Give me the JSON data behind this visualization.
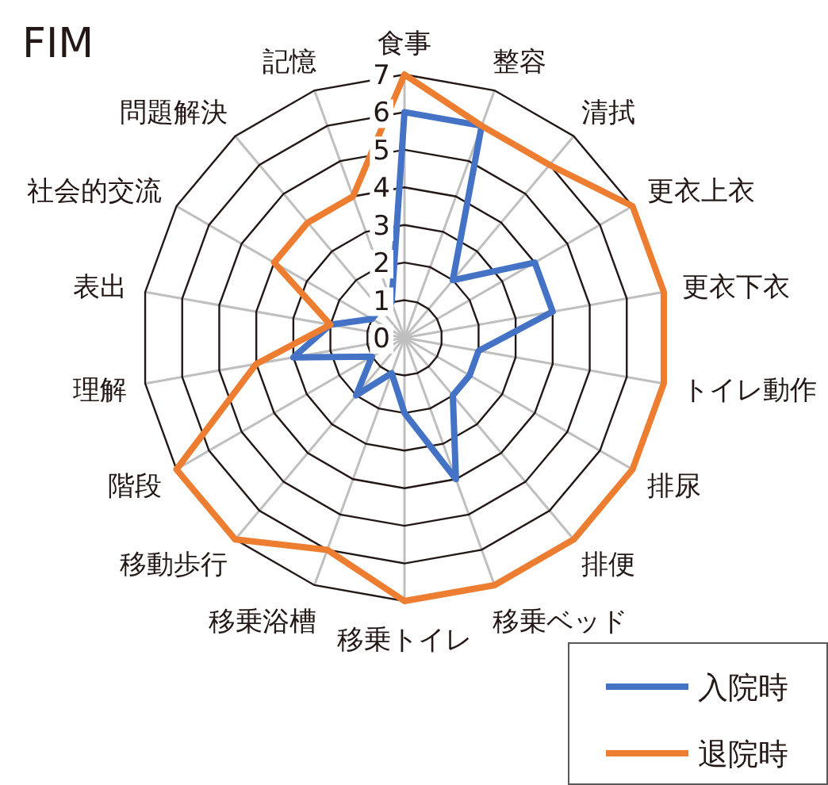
{
  "chart_data": {
    "type": "radar",
    "title": "FIM",
    "categories": [
      "食事",
      "整容",
      "清拭",
      "更衣上衣",
      "更衣下衣",
      "トイレ動作",
      "排尿",
      "排便",
      "移乗ベッド",
      "移乗トイレ",
      "移乗浴槽",
      "移動歩行",
      "階段",
      "理解",
      "表出",
      "社会的交流",
      "問題解決",
      "記憶"
    ],
    "series": [
      {
        "name": "入院時",
        "color": "#4472c4",
        "values": [
          6,
          6,
          2,
          4,
          4,
          2,
          2,
          2,
          4,
          2,
          1,
          2,
          1,
          3,
          2,
          1,
          1,
          1
        ]
      },
      {
        "name": "退院時",
        "color": "#ed7d31",
        "values": [
          7,
          6,
          6,
          7,
          7,
          7,
          7,
          7,
          7,
          7,
          6,
          7,
          7,
          4,
          2,
          4,
          4,
          4
        ]
      }
    ],
    "ylim": [
      0,
      7
    ],
    "yticks": [
      0,
      1,
      2,
      3,
      4,
      5,
      6,
      7
    ],
    "legend": "bottom right",
    "grid": true
  }
}
